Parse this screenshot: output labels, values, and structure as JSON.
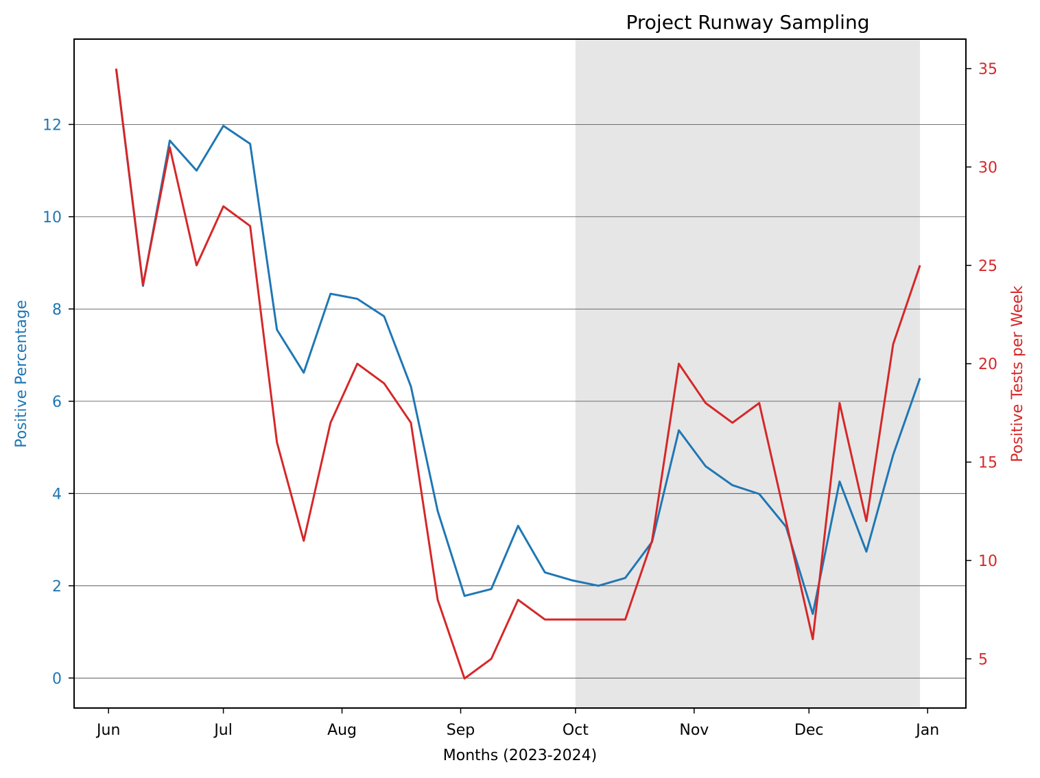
{
  "chart_data": {
    "type": "line",
    "title": "Project Runway Sampling",
    "xlabel": "Months (2023-2024)",
    "ylabel_left": "Positive Percentage",
    "ylabel_right": "Positive Tests per Week",
    "x_ticks": [
      {
        "date": "2023-06-01",
        "label": "Jun"
      },
      {
        "date": "2023-07-01",
        "label": "Jul"
      },
      {
        "date": "2023-08-01",
        "label": "Aug"
      },
      {
        "date": "2023-09-01",
        "label": "Sep"
      },
      {
        "date": "2023-10-01",
        "label": "Oct"
      },
      {
        "date": "2023-11-01",
        "label": "Nov"
      },
      {
        "date": "2023-12-01",
        "label": "Dec"
      },
      {
        "date": "2024-01-01",
        "label": "Jan"
      }
    ],
    "xlim": [
      "2023-05-23",
      "2024-01-11"
    ],
    "ylim_left": [
      -0.65,
      13.85
    ],
    "ylim_right": [
      2.5,
      36.5
    ],
    "y_ticks_left": [
      0,
      2,
      4,
      6,
      8,
      10,
      12
    ],
    "y_ticks_right": [
      5,
      10,
      15,
      20,
      25,
      30,
      35
    ],
    "shaded_region": {
      "start": "2023-10-01",
      "end": "2023-12-30",
      "color": "#e6e6e6"
    },
    "grid": "horizontal, left axis",
    "colors": {
      "left_series": "#1f77b4",
      "right_series": "#d62728",
      "grid": "#444444"
    },
    "x": [
      "2023-06-03",
      "2023-06-10",
      "2023-06-17",
      "2023-06-24",
      "2023-07-01",
      "2023-07-08",
      "2023-07-15",
      "2023-07-22",
      "2023-07-29",
      "2023-08-05",
      "2023-08-12",
      "2023-08-19",
      "2023-08-26",
      "2023-09-02",
      "2023-09-09",
      "2023-09-16",
      "2023-09-23",
      "2023-09-30",
      "2023-10-07",
      "2023-10-14",
      "2023-10-21",
      "2023-10-28",
      "2023-11-04",
      "2023-11-11",
      "2023-11-18",
      "2023-11-25",
      "2023-12-02",
      "2023-12-09",
      "2023-12-16",
      "2023-12-23",
      "2023-12-30"
    ],
    "series": [
      {
        "axis": "left",
        "values": [
          13.2,
          8.5,
          11.65,
          11.0,
          11.97,
          11.58,
          7.55,
          6.62,
          8.33,
          8.22,
          7.84,
          6.32,
          3.62,
          1.78,
          1.93,
          3.3,
          2.29,
          2.12,
          2.0,
          2.17,
          2.95,
          5.37,
          4.59,
          4.18,
          3.99,
          3.28,
          1.39,
          4.26,
          2.74,
          4.84,
          6.5
        ]
      },
      {
        "axis": "right",
        "values": [
          35,
          24,
          31,
          25,
          28,
          27,
          16,
          11,
          17,
          20,
          19,
          17,
          8,
          4,
          5,
          8,
          7,
          7,
          7,
          7,
          11,
          20,
          18,
          17,
          18,
          12,
          6,
          18,
          12,
          21,
          25
        ]
      }
    ]
  }
}
